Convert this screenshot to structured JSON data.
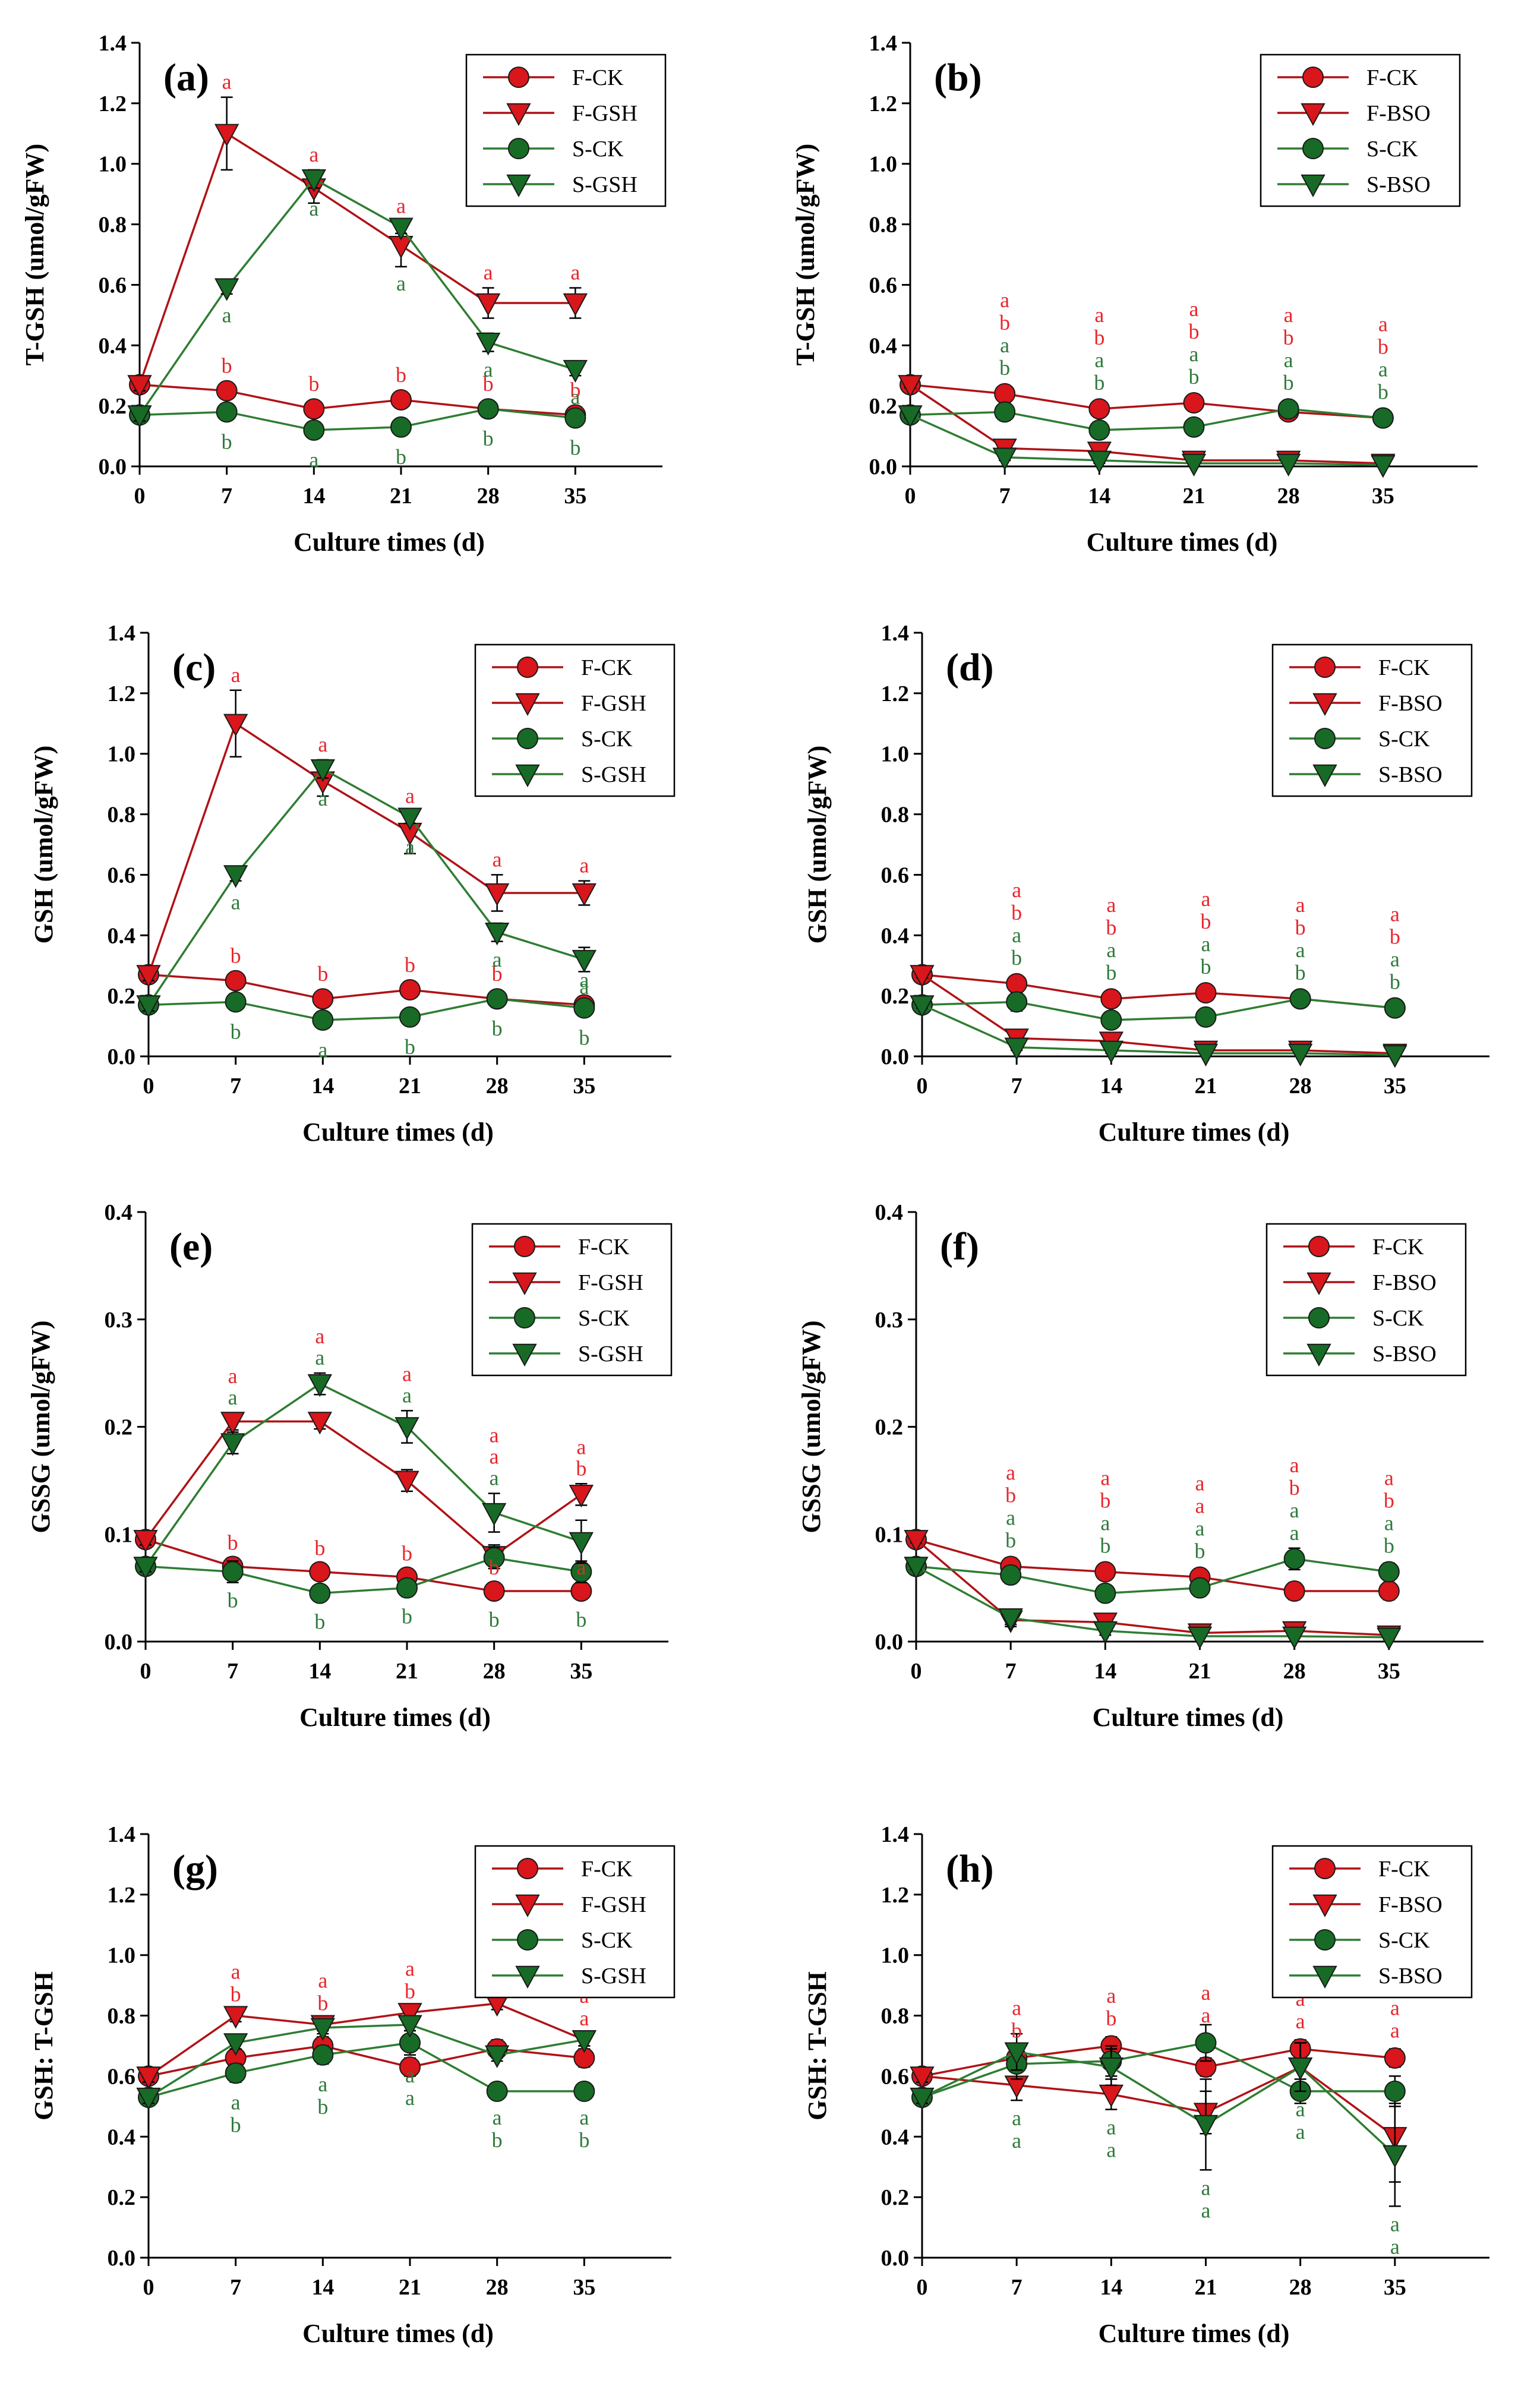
{
  "colors": {
    "red_fill": "#d8161b",
    "red_line": "#b01216",
    "green_fill": "#176b26",
    "green_line": "#2e7d32",
    "sig_red": "#e8262c",
    "sig_green": "#2f7a3c"
  },
  "chart_data": [
    {
      "type": "line",
      "tag": "(a)",
      "ylabel": "T-GSH (umol/gFW)",
      "xlabel": "Culture times (d)",
      "x": [
        0,
        7,
        14,
        21,
        28,
        35
      ],
      "xticks": [
        "0",
        "7",
        "14",
        "21",
        "28",
        "35"
      ],
      "ylim": [
        0,
        1.4
      ],
      "yticks": [
        "0.0",
        "0.2",
        "0.4",
        "0.6",
        "0.8",
        "1.0",
        "1.2",
        "1.4"
      ],
      "legend": [
        "F-CK",
        "F-GSH",
        "S-CK",
        "S-GSH"
      ],
      "series": [
        {
          "name": "F-CK",
          "values": [
            0.27,
            0.25,
            0.19,
            0.22,
            0.19,
            0.17
          ],
          "err": [
            0.02,
            0.02,
            0.02,
            0.02,
            0.02,
            0.02
          ]
        },
        {
          "name": "F-GSH",
          "values": [
            0.27,
            1.1,
            0.92,
            0.73,
            0.54,
            0.54
          ],
          "err": [
            0.02,
            0.12,
            0.05,
            0.07,
            0.05,
            0.05
          ]
        },
        {
          "name": "S-CK",
          "values": [
            0.17,
            0.18,
            0.12,
            0.13,
            0.19,
            0.16
          ],
          "err": [
            0.02,
            0.02,
            0.02,
            0.02,
            0.02,
            0.02
          ]
        },
        {
          "name": "S-GSH",
          "values": [
            0.17,
            0.59,
            0.95,
            0.79,
            0.41,
            0.32
          ],
          "err": [
            0.02,
            0.02,
            0.03,
            0.02,
            0.03,
            0.02
          ]
        }
      ],
      "sig": [
        [
          "",
          "",
          ""
        ],
        [
          "a",
          "b",
          "b"
        ],
        [
          "a",
          "b",
          "a"
        ],
        [
          "a",
          "b",
          "b"
        ],
        [
          "a",
          "b",
          "b"
        ],
        [
          "a",
          "b",
          "b"
        ]
      ],
      "sig_col": [
        [
          "r",
          "r",
          "g"
        ],
        [
          "r",
          "r",
          "g"
        ],
        [
          "r",
          "r",
          "g"
        ],
        [
          "r",
          "r",
          "g"
        ],
        [
          "r",
          "r",
          "g"
        ],
        [
          "r",
          "r",
          "g"
        ]
      ],
      "sig_extra": [
        [
          "",
          ""
        ],
        [
          "a",
          ""
        ],
        [
          "a",
          ""
        ],
        [
          "a",
          ""
        ],
        [
          "a",
          ""
        ],
        [
          "a",
          ""
        ]
      ]
    },
    {
      "type": "line",
      "tag": "(b)",
      "ylabel": "T-GSH (umol/gFW)",
      "xlabel": "Culture times (d)",
      "x": [
        0,
        7,
        14,
        21,
        28,
        35
      ],
      "xticks": [
        "0",
        "7",
        "14",
        "21",
        "28",
        "35"
      ],
      "ylim": [
        0,
        1.4
      ],
      "yticks": [
        "0.0",
        "0.2",
        "0.4",
        "0.6",
        "0.8",
        "1.0",
        "1.2",
        "1.4"
      ],
      "legend": [
        "F-CK",
        "F-BSO",
        "S-CK",
        "S-BSO"
      ],
      "series": [
        {
          "name": "F-CK",
          "values": [
            0.27,
            0.24,
            0.19,
            0.21,
            0.18,
            0.16
          ],
          "err": [
            0.02,
            0.02,
            0.02,
            0.02,
            0.02,
            0.02
          ]
        },
        {
          "name": "F-BSO",
          "values": [
            0.27,
            0.06,
            0.05,
            0.02,
            0.02,
            0.01
          ],
          "err": [
            0.01,
            0.01,
            0.01,
            0.01,
            0.01,
            0.01
          ]
        },
        {
          "name": "S-CK",
          "values": [
            0.17,
            0.18,
            0.12,
            0.13,
            0.19,
            0.16
          ],
          "err": [
            0.02,
            0.02,
            0.02,
            0.02,
            0.02,
            0.02
          ]
        },
        {
          "name": "S-BSO",
          "values": [
            0.17,
            0.03,
            0.02,
            0.01,
            0.01,
            0.005
          ],
          "err": [
            0.01,
            0.01,
            0.01,
            0.01,
            0.01,
            0.01
          ]
        }
      ],
      "sig_stack": [
        [],
        [
          "a",
          "b",
          "a",
          "b"
        ],
        [
          "a",
          "b",
          "a",
          "b"
        ],
        [
          "a",
          "b",
          "a",
          "b"
        ],
        [
          "a",
          "b",
          "a",
          "b"
        ],
        [
          "a",
          "b",
          "a",
          "b"
        ]
      ]
    },
    {
      "type": "line",
      "tag": "(c)",
      "ylabel": "GSH (umol/gFW)",
      "xlabel": "Culture times (d)",
      "x": [
        0,
        7,
        14,
        21,
        28,
        35
      ],
      "xticks": [
        "0",
        "7",
        "14",
        "21",
        "28",
        "35"
      ],
      "ylim": [
        0,
        1.4
      ],
      "yticks": [
        "0.0",
        "0.2",
        "0.4",
        "0.6",
        "0.8",
        "1.0",
        "1.2",
        "1.4"
      ],
      "legend": [
        "F-CK",
        "F-GSH",
        "S-CK",
        "S-GSH"
      ],
      "series": [
        {
          "name": "F-CK",
          "values": [
            0.27,
            0.25,
            0.19,
            0.22,
            0.19,
            0.17
          ],
          "err": [
            0.02,
            0.02,
            0.02,
            0.02,
            0.02,
            0.02
          ]
        },
        {
          "name": "F-GSH",
          "values": [
            0.27,
            1.1,
            0.91,
            0.74,
            0.54,
            0.54
          ],
          "err": [
            0.02,
            0.11,
            0.05,
            0.07,
            0.06,
            0.04
          ]
        },
        {
          "name": "S-CK",
          "values": [
            0.17,
            0.18,
            0.12,
            0.13,
            0.19,
            0.16
          ],
          "err": [
            0.02,
            0.02,
            0.02,
            0.02,
            0.02,
            0.02
          ]
        },
        {
          "name": "S-GSH",
          "values": [
            0.17,
            0.6,
            0.95,
            0.79,
            0.41,
            0.32
          ],
          "err": [
            0.02,
            0.02,
            0.03,
            0.02,
            0.03,
            0.04
          ]
        }
      ],
      "sig": [
        [
          "",
          "",
          ""
        ],
        [
          "a",
          "b",
          "b"
        ],
        [
          "a",
          "b",
          "a"
        ],
        [
          "a",
          "b",
          "b"
        ],
        [
          "a",
          "b",
          "b"
        ],
        [
          "a",
          "a",
          "b"
        ]
      ],
      "sig_col": [
        [
          "r",
          "r",
          "g"
        ],
        [
          "r",
          "r",
          "g"
        ],
        [
          "r",
          "r",
          "g"
        ],
        [
          "r",
          "r",
          "g"
        ],
        [
          "r",
          "r",
          "g"
        ],
        [
          "r",
          "g",
          "g"
        ]
      ],
      "sig_extra": [
        [
          "",
          ""
        ],
        [
          "a",
          ""
        ],
        [
          "a",
          ""
        ],
        [
          "a",
          ""
        ],
        [
          "a",
          ""
        ],
        [
          "a",
          ""
        ]
      ]
    },
    {
      "type": "line",
      "tag": "(d)",
      "ylabel": "GSH (umol/gFW)",
      "xlabel": "Culture times (d)",
      "x": [
        0,
        7,
        14,
        21,
        28,
        35
      ],
      "xticks": [
        "0",
        "7",
        "14",
        "21",
        "28",
        "35"
      ],
      "ylim": [
        0,
        1.4
      ],
      "yticks": [
        "0.0",
        "0.2",
        "0.4",
        "0.6",
        "0.8",
        "1.0",
        "1.2",
        "1.4"
      ],
      "legend": [
        "F-CK",
        "F-BSO",
        "S-CK",
        "S-BSO"
      ],
      "series": [
        {
          "name": "F-CK",
          "values": [
            0.27,
            0.24,
            0.19,
            0.21,
            0.19,
            0.16
          ],
          "err": [
            0.02,
            0.02,
            0.02,
            0.02,
            0.02,
            0.02
          ]
        },
        {
          "name": "F-BSO",
          "values": [
            0.27,
            0.06,
            0.05,
            0.02,
            0.02,
            0.01
          ],
          "err": [
            0.01,
            0.01,
            0.01,
            0.01,
            0.01,
            0.01
          ]
        },
        {
          "name": "S-CK",
          "values": [
            0.17,
            0.18,
            0.12,
            0.13,
            0.19,
            0.16
          ],
          "err": [
            0.02,
            0.03,
            0.02,
            0.02,
            0.02,
            0.02
          ]
        },
        {
          "name": "S-BSO",
          "values": [
            0.17,
            0.03,
            0.02,
            0.01,
            0.01,
            0.005
          ],
          "err": [
            0.01,
            0.01,
            0.01,
            0.01,
            0.01,
            0.01
          ]
        }
      ],
      "sig_stack": [
        [],
        [
          "a",
          "b",
          "a",
          "b"
        ],
        [
          "a",
          "b",
          "a",
          "b"
        ],
        [
          "a",
          "b",
          "a",
          "b"
        ],
        [
          "a",
          "b",
          "a",
          "b"
        ],
        [
          "a",
          "b",
          "a",
          "b"
        ]
      ]
    },
    {
      "type": "line",
      "tag": "(e)",
      "ylabel": "GSSG (umol/gFW)",
      "xlabel": "Culture times (d)",
      "x": [
        0,
        7,
        14,
        21,
        28,
        35
      ],
      "xticks": [
        "0",
        "7",
        "14",
        "21",
        "28",
        "35"
      ],
      "ylim": [
        0,
        0.4
      ],
      "yticks": [
        "0.0",
        "0.1",
        "0.2",
        "0.3",
        "0.4"
      ],
      "legend": [
        "F-CK",
        "F-GSH",
        "S-CK",
        "S-GSH"
      ],
      "series": [
        {
          "name": "F-CK",
          "values": [
            0.095,
            0.07,
            0.065,
            0.06,
            0.047,
            0.047
          ],
          "err": [
            0.005,
            0.008,
            0.007,
            0.007,
            0.006,
            0.006
          ]
        },
        {
          "name": "F-GSH",
          "values": [
            0.095,
            0.205,
            0.205,
            0.15,
            0.08,
            0.137
          ],
          "err": [
            0.005,
            0.008,
            0.007,
            0.01,
            0.01,
            0.01
          ]
        },
        {
          "name": "S-CK",
          "values": [
            0.07,
            0.065,
            0.045,
            0.05,
            0.078,
            0.065
          ],
          "err": [
            0.005,
            0.01,
            0.005,
            0.008,
            0.01,
            0.01
          ]
        },
        {
          "name": "S-GSH",
          "values": [
            0.07,
            0.185,
            0.24,
            0.2,
            0.12,
            0.093
          ],
          "err": [
            0.005,
            0.01,
            0.01,
            0.015,
            0.018,
            0.02
          ]
        }
      ],
      "sig_e": true
    },
    {
      "type": "line",
      "tag": "(f)",
      "ylabel": "GSSG (umol/gFW)",
      "xlabel": "Culture times (d)",
      "x": [
        0,
        7,
        14,
        21,
        28,
        35
      ],
      "xticks": [
        "0",
        "7",
        "14",
        "21",
        "28",
        "35"
      ],
      "ylim": [
        0,
        0.4
      ],
      "yticks": [
        "0.0",
        "0.1",
        "0.2",
        "0.3",
        "0.4"
      ],
      "legend": [
        "F-CK",
        "F-BSO",
        "S-CK",
        "S-BSO"
      ],
      "series": [
        {
          "name": "F-CK",
          "values": [
            0.095,
            0.07,
            0.065,
            0.06,
            0.047,
            0.047
          ],
          "err": [
            0.005,
            0.008,
            0.007,
            0.007,
            0.008,
            0.008
          ]
        },
        {
          "name": "F-BSO",
          "values": [
            0.095,
            0.02,
            0.018,
            0.008,
            0.01,
            0.006
          ],
          "err": [
            0.003,
            0.004,
            0.003,
            0.002,
            0.002,
            0.002
          ]
        },
        {
          "name": "S-CK",
          "values": [
            0.07,
            0.062,
            0.045,
            0.05,
            0.077,
            0.065
          ],
          "err": [
            0.005,
            0.008,
            0.005,
            0.008,
            0.01,
            0.008
          ]
        },
        {
          "name": "S-BSO",
          "values": [
            0.07,
            0.022,
            0.01,
            0.005,
            0.005,
            0.004
          ],
          "err": [
            0.003,
            0.008,
            0.004,
            0.002,
            0.002,
            0.002
          ]
        }
      ],
      "sig_stack": [
        [],
        [
          "a",
          "b",
          "a",
          "b"
        ],
        [
          "a",
          "b",
          "a",
          "b"
        ],
        [
          "a",
          "a",
          "a",
          "b"
        ],
        [
          "a",
          "b",
          "a",
          "a"
        ],
        [
          "a",
          "b",
          "a",
          "b"
        ]
      ]
    },
    {
      "type": "line",
      "tag": "(g)",
      "ylabel": "GSH: T-GSH",
      "xlabel": "Culture times (d)",
      "x": [
        0,
        7,
        14,
        21,
        28,
        35
      ],
      "xticks": [
        "0",
        "7",
        "14",
        "21",
        "28",
        "35"
      ],
      "ylim": [
        0,
        1.4
      ],
      "yticks": [
        "0.0",
        "0.2",
        "0.4",
        "0.6",
        "0.8",
        "1.0",
        "1.2",
        "1.4"
      ],
      "legend": [
        "F-CK",
        "F-GSH",
        "S-CK",
        "S-GSH"
      ],
      "series": [
        {
          "name": "F-CK",
          "values": [
            0.6,
            0.66,
            0.7,
            0.63,
            0.69,
            0.66
          ],
          "err": [
            0.02,
            0.03,
            0.03,
            0.03,
            0.03,
            0.03
          ]
        },
        {
          "name": "F-GSH",
          "values": [
            0.6,
            0.8,
            0.77,
            0.81,
            0.84,
            0.72
          ],
          "err": [
            0.02,
            0.02,
            0.02,
            0.02,
            0.02,
            0.02
          ]
        },
        {
          "name": "S-CK",
          "values": [
            0.53,
            0.61,
            0.67,
            0.71,
            0.55,
            0.55
          ],
          "err": [
            0.02,
            0.03,
            0.03,
            0.04,
            0.02,
            0.02
          ]
        },
        {
          "name": "S-GSH",
          "values": [
            0.53,
            0.71,
            0.76,
            0.77,
            0.67,
            0.72
          ],
          "err": [
            0.02,
            0.02,
            0.02,
            0.02,
            0.02,
            0.02
          ]
        }
      ],
      "sig_g": true
    },
    {
      "type": "line",
      "tag": "(h)",
      "ylabel": "GSH: T-GSH",
      "xlabel": "Culture times (d)",
      "x": [
        0,
        7,
        14,
        21,
        28,
        35
      ],
      "xticks": [
        "0",
        "7",
        "14",
        "21",
        "28",
        "35"
      ],
      "ylim": [
        0,
        1.4
      ],
      "yticks": [
        "0.0",
        "0.2",
        "0.4",
        "0.6",
        "0.8",
        "1.0",
        "1.2",
        "1.4"
      ],
      "legend": [
        "F-CK",
        "F-BSO",
        "S-CK",
        "S-BSO"
      ],
      "series": [
        {
          "name": "F-CK",
          "values": [
            0.6,
            0.66,
            0.7,
            0.63,
            0.69,
            0.66
          ],
          "err": [
            0.02,
            0.03,
            0.03,
            0.03,
            0.03,
            0.03
          ]
        },
        {
          "name": "F-BSO",
          "values": [
            0.6,
            0.57,
            0.54,
            0.48,
            0.63,
            0.4
          ],
          "err": [
            0.02,
            0.05,
            0.05,
            0.07,
            0.08,
            0.15
          ]
        },
        {
          "name": "S-CK",
          "values": [
            0.53,
            0.64,
            0.65,
            0.71,
            0.55,
            0.55
          ],
          "err": [
            0.02,
            0.05,
            0.05,
            0.06,
            0.04,
            0.05
          ]
        },
        {
          "name": "S-BSO",
          "values": [
            0.53,
            0.68,
            0.63,
            0.44,
            0.63,
            0.34
          ],
          "err": [
            0.02,
            0.06,
            0.06,
            0.15,
            0.08,
            0.17
          ]
        }
      ],
      "sig_h": true
    }
  ]
}
